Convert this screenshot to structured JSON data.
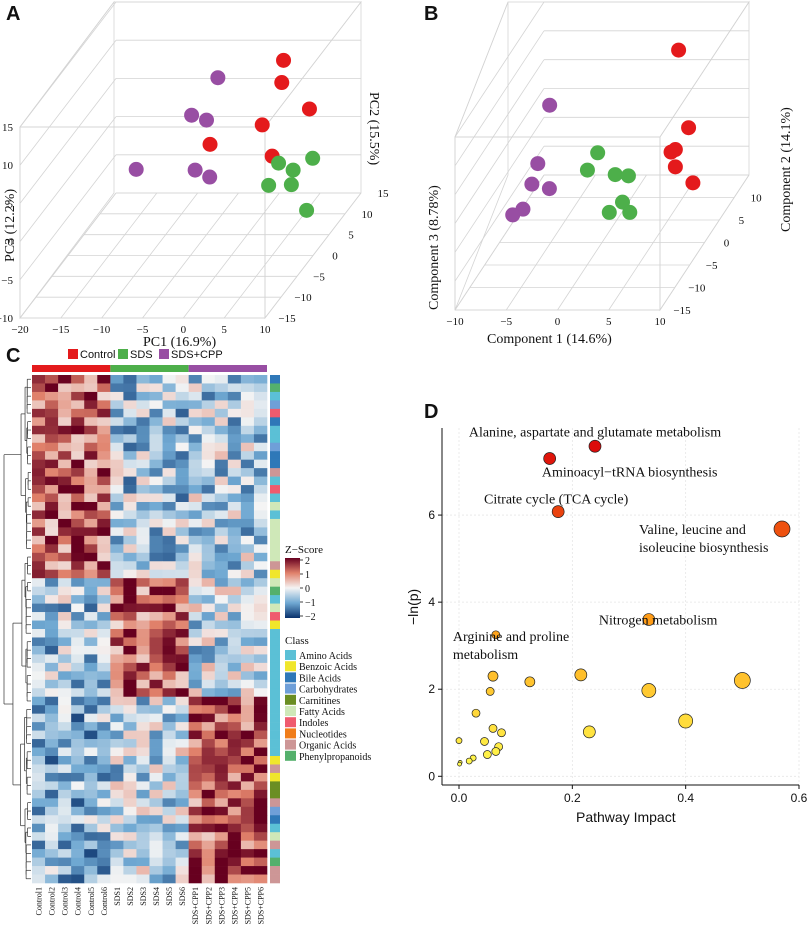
{
  "panel_letters": [
    "A",
    "B",
    "C",
    "D"
  ],
  "chart_data": [
    {
      "id": "A",
      "type": "scatter",
      "projection": "3d",
      "axis_labels": {
        "x": "PC1 (16.9%)",
        "y": "PC2 (15.5%)",
        "z": "PC3 (12.2%)"
      },
      "x_ticks": [
        "−20",
        "−15",
        "−10",
        "−5",
        "0",
        "5",
        "10"
      ],
      "y_ticks": [
        "−15",
        "−10",
        "−5",
        "0",
        "5",
        "10",
        "15"
      ],
      "z_ticks": [
        "−10",
        "−5",
        "0",
        "5",
        "10",
        "15"
      ],
      "series": [
        {
          "name": "Control",
          "color": "#e41a1c",
          "points": [
            [
              6,
              1,
              15
            ],
            [
              5,
              3,
              11
            ],
            [
              8,
              4,
              7
            ],
            [
              3,
              2,
              6
            ],
            [
              -3,
              1,
              4
            ],
            [
              5,
              0,
              3
            ]
          ]
        },
        {
          "name": "SDS",
          "color": "#4daf4a",
          "points": [
            [
              5,
              2,
              1
            ],
            [
              6,
              4,
              -1
            ],
            [
              8,
              5,
              0
            ],
            [
              5,
              6,
              -4
            ],
            [
              3,
              4,
              -3
            ],
            [
              10,
              -2,
              -3
            ]
          ]
        },
        {
          "name": "SDS+CPP",
          "color": "#984ea3",
          "points": [
            [
              -4,
              6,
              10
            ],
            [
              -8,
              8,
              4
            ],
            [
              -5,
              5,
              5
            ],
            [
              -6,
              4,
              -1
            ],
            [
              -5,
              6,
              -3
            ],
            [
              -14,
              6,
              -2
            ]
          ]
        }
      ]
    },
    {
      "id": "B",
      "type": "scatter",
      "projection": "3d",
      "axis_labels": {
        "x": "Component 1 (14.6%)",
        "y": "Component 2 (14.1%)",
        "z": "Component 3 (8.78%)"
      },
      "x_ticks": [
        "−10",
        "−5",
        "0",
        "5",
        "10"
      ],
      "y_ticks": [
        "−15",
        "−10",
        "−5",
        "0",
        "5",
        "10"
      ],
      "series": [
        {
          "name": "Control",
          "color": "#e41a1c",
          "points": [
            [
              4,
              12,
              14
            ],
            [
              7,
              5,
              6
            ],
            [
              6,
              4,
              3
            ],
            [
              5,
              6,
              1
            ],
            [
              6,
              4,
              0
            ],
            [
              8,
              3,
              -2
            ]
          ]
        },
        {
          "name": "SDS",
          "color": "#4daf4a",
          "points": [
            [
              -1,
              2,
              4
            ],
            [
              1,
              1,
              1
            ],
            [
              2,
              2,
              0
            ],
            [
              -2,
              2,
              1
            ],
            [
              2,
              0,
              -3
            ],
            [
              1,
              -1,
              -4
            ],
            [
              3,
              -1,
              -4
            ]
          ]
        },
        {
          "name": "SDS+CPP",
          "color": "#984ea3",
          "points": [
            [
              -8,
              10,
              6
            ],
            [
              -8,
              6,
              -1
            ],
            [
              -8,
              4,
              -3
            ],
            [
              -6,
              3,
              -3
            ],
            [
              -8,
              1,
              -5
            ],
            [
              -9,
              1,
              -6
            ]
          ]
        }
      ]
    },
    {
      "id": "C",
      "type": "heatmap",
      "legend_groups": [
        "Control",
        "SDS",
        "SDS+CPP"
      ],
      "group_colors": [
        "#e41a1c",
        "#4daf4a",
        "#984ea3"
      ],
      "columns": [
        "Control1",
        "Control2",
        "Control3",
        "Control4",
        "Control5",
        "Control6",
        "SDS1",
        "SDS2",
        "SDS3",
        "SDS4",
        "SDS5",
        "SDS6",
        "SDS+CPP1",
        "SDS+CPP2",
        "SDS+CPP3",
        "SDS+CPP4",
        "SDS+CPP5",
        "SDS+CPP6"
      ],
      "n_rows": 60,
      "zscore_title": "Z−Score",
      "zscore_ticks": [
        "2",
        "1",
        "0",
        "−1",
        "−2"
      ],
      "class_title": "Class",
      "classes": [
        {
          "name": "Amino Acids",
          "color": "#5bc0d6"
        },
        {
          "name": "Benzoic Acids",
          "color": "#f0e62c"
        },
        {
          "name": "Bile Acids",
          "color": "#2f78b8"
        },
        {
          "name": "Carbohydrates",
          "color": "#6f9fd8"
        },
        {
          "name": "Carnitines",
          "color": "#6b8e23"
        },
        {
          "name": "Fatty Acids",
          "color": "#cfe8b8"
        },
        {
          "name": "Indoles",
          "color": "#ef5b6e"
        },
        {
          "name": "Nucleotides",
          "color": "#f07d1a"
        },
        {
          "name": "Organic Acids",
          "color": "#cd9696"
        },
        {
          "name": "Phenylpropanoids",
          "color": "#54b06c"
        }
      ],
      "row_classes": [
        2,
        9,
        0,
        3,
        6,
        2,
        0,
        0,
        3,
        2,
        2,
        8,
        0,
        6,
        0,
        5,
        0,
        5,
        5,
        5,
        5,
        5,
        8,
        1,
        5,
        9,
        0,
        5,
        6,
        1,
        0,
        0,
        0,
        0,
        0,
        0,
        0,
        0,
        0,
        0,
        0,
        0,
        0,
        0,
        0,
        1,
        8,
        1,
        4,
        4,
        8,
        3,
        2,
        0,
        5,
        8,
        0,
        9,
        8,
        8
      ]
    },
    {
      "id": "D",
      "type": "scatter",
      "xlabel": "Pathway Impact",
      "ylabel": "−ln(p)",
      "xlim": [
        -0.03,
        0.6
      ],
      "ylim": [
        -0.2,
        8.0
      ],
      "x_ticks": [
        "0.0",
        "0.2",
        "0.4",
        "0.6"
      ],
      "y_ticks": [
        "0",
        "2",
        "4",
        "6"
      ],
      "points": [
        {
          "x": 0.24,
          "y": 7.58,
          "size": 6
        },
        {
          "x": 0.16,
          "y": 7.3,
          "size": 6
        },
        {
          "x": 0.175,
          "y": 6.08,
          "size": 6
        },
        {
          "x": 0.57,
          "y": 5.68,
          "size": 8
        },
        {
          "x": 0.335,
          "y": 3.6,
          "size": 6
        },
        {
          "x": 0.065,
          "y": 3.25,
          "size": 4
        },
        {
          "x": 0.06,
          "y": 2.3,
          "size": 5
        },
        {
          "x": 0.055,
          "y": 1.95,
          "size": 4
        },
        {
          "x": 0.125,
          "y": 2.17,
          "size": 5
        },
        {
          "x": 0.215,
          "y": 2.33,
          "size": 6
        },
        {
          "x": 0.335,
          "y": 1.97,
          "size": 7
        },
        {
          "x": 0.5,
          "y": 2.2,
          "size": 8
        },
        {
          "x": 0.03,
          "y": 1.45,
          "size": 4
        },
        {
          "x": 0.06,
          "y": 1.1,
          "size": 4
        },
        {
          "x": 0.23,
          "y": 1.02,
          "size": 6
        },
        {
          "x": 0.4,
          "y": 1.27,
          "size": 7
        },
        {
          "x": 0.075,
          "y": 1.0,
          "size": 4
        },
        {
          "x": 0.0,
          "y": 0.82,
          "size": 3
        },
        {
          "x": 0.045,
          "y": 0.8,
          "size": 4
        },
        {
          "x": 0.07,
          "y": 0.68,
          "size": 4
        },
        {
          "x": 0.065,
          "y": 0.57,
          "size": 4
        },
        {
          "x": 0.05,
          "y": 0.5,
          "size": 4
        },
        {
          "x": 0.025,
          "y": 0.42,
          "size": 3
        },
        {
          "x": 0.018,
          "y": 0.35,
          "size": 3
        },
        {
          "x": 0.002,
          "y": 0.32,
          "size": 2
        },
        {
          "x": 0.001,
          "y": 0.28,
          "size": 2
        }
      ],
      "annotations": [
        {
          "lines": [
            "Alanine, aspartate and glutamate metabolism"
          ],
          "x": 0.24,
          "y": 7.58,
          "anchor": "mid"
        },
        {
          "lines": [
            "Aminoacyl−tRNA biosynthesis"
          ],
          "x": 0.16,
          "y": 7.3,
          "anchor": "below"
        },
        {
          "lines": [
            "Citrate cycle (TCA cycle)"
          ],
          "x": 0.175,
          "y": 6.08,
          "anchor": "above"
        },
        {
          "lines": [
            "Valine, leucine and",
            "isoleucine biosynthesis"
          ],
          "x": 0.57,
          "y": 5.68,
          "anchor": "left"
        },
        {
          "lines": [
            "Nitrogen metabolism"
          ],
          "x": 0.335,
          "y": 3.6,
          "anchor": "left"
        },
        {
          "lines": [
            "Arginine and proline",
            "metabolism"
          ],
          "x": 0.065,
          "y": 3.25,
          "anchor": "left"
        }
      ]
    }
  ]
}
